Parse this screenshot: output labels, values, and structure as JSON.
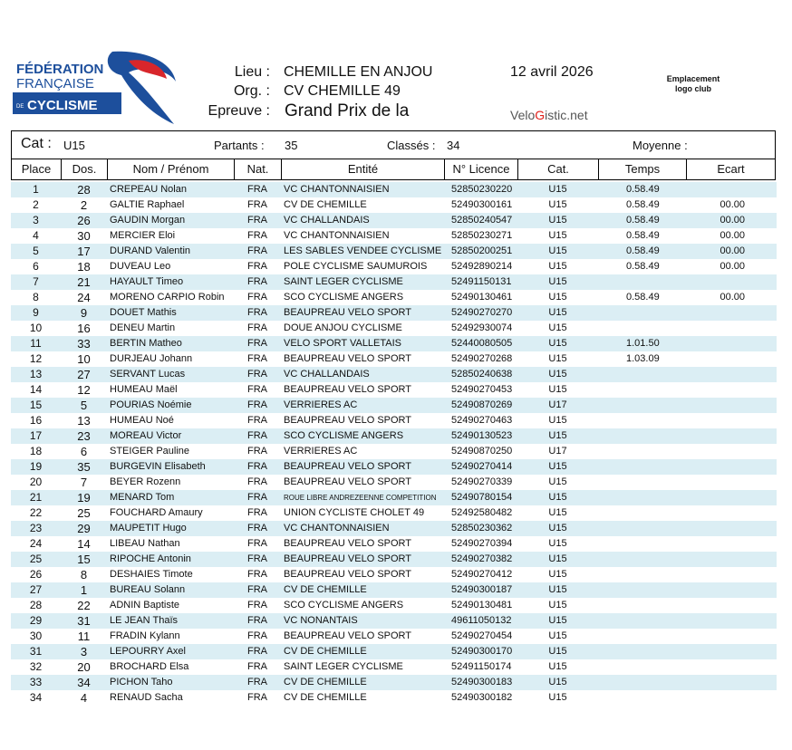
{
  "header": {
    "logo_text": [
      "FÉDÉRATION",
      "FRANÇAISE",
      "DE",
      "CYCLISME"
    ],
    "lieu_label": "Lieu :",
    "lieu": "CHEMILLE EN  ANJOU",
    "org_label": "Org. :",
    "org": "CV CHEMILLE 49",
    "epreuve_label": "Epreuve :",
    "epreuve": "Grand Prix de la",
    "date": "12 avril 2026",
    "club_logo_placeholder": [
      "Emplacement",
      "logo club"
    ],
    "velogistic": [
      "Velo",
      "G",
      "istic.net"
    ]
  },
  "summary": {
    "cat_label": "Cat :",
    "cat": "U15",
    "partants_label": "Partants :",
    "partants": "35",
    "classes_label": "Classés :",
    "classes": "34",
    "moyenne_label": "Moyenne :",
    "moyenne": ""
  },
  "columns": [
    "Place",
    "Dos.",
    "Nom  /  Prénom",
    "Nat.",
    "Entité",
    "N° Licence",
    "Cat.",
    "Temps",
    "Ecart"
  ],
  "rows": [
    [
      "1",
      "28",
      "CREPEAU  Nolan",
      "FRA",
      "VC CHANTONNAISIEN",
      "52850230220",
      "U15",
      "0.58.49",
      ""
    ],
    [
      "2",
      "2",
      "GALTIE  Raphael",
      "FRA",
      "CV DE CHEMILLE",
      "52490300161",
      "U15",
      "0.58.49",
      "00.00"
    ],
    [
      "3",
      "26",
      "GAUDIN  Morgan",
      "FRA",
      "VC CHALLANDAIS",
      "52850240547",
      "U15",
      "0.58.49",
      "00.00"
    ],
    [
      "4",
      "30",
      "MERCIER  Eloi",
      "FRA",
      "VC CHANTONNAISIEN",
      "52850230271",
      "U15",
      "0.58.49",
      "00.00"
    ],
    [
      "5",
      "17",
      "DURAND  Valentin",
      "FRA",
      "LES SABLES VENDEE CYCLISME",
      "52850200251",
      "U15",
      "0.58.49",
      "00.00"
    ],
    [
      "6",
      "18",
      "DUVEAU  Leo",
      "FRA",
      "POLE CYCLISME SAUMUROIS",
      "52492890214",
      "U15",
      "0.58.49",
      "00.00"
    ],
    [
      "7",
      "21",
      "HAYAULT  Timeo",
      "FRA",
      "SAINT LEGER CYCLISME",
      "52491150131",
      "U15",
      "",
      ""
    ],
    [
      "8",
      "24",
      "MORENO CARPIO  Robin",
      "FRA",
      "SCO CYCLISME ANGERS",
      "52490130461",
      "U15",
      "0.58.49",
      "00.00"
    ],
    [
      "9",
      "9",
      "DOUET  Mathis",
      "FRA",
      "BEAUPREAU VELO SPORT",
      "52490270270",
      "U15",
      "",
      ""
    ],
    [
      "10",
      "16",
      "DENEU  Martin",
      "FRA",
      "DOUE ANJOU CYCLISME",
      "52492930074",
      "U15",
      "",
      ""
    ],
    [
      "11",
      "33",
      "BERTIN  Matheo",
      "FRA",
      "VELO SPORT VALLETAIS",
      "52440080505",
      "U15",
      "1.01.50",
      ""
    ],
    [
      "12",
      "10",
      "DURJEAU  Johann",
      "FRA",
      "BEAUPREAU VELO SPORT",
      "52490270268",
      "U15",
      "1.03.09",
      ""
    ],
    [
      "13",
      "27",
      "SERVANT  Lucas",
      "FRA",
      "VC CHALLANDAIS",
      "52850240638",
      "U15",
      "",
      ""
    ],
    [
      "14",
      "12",
      "HUMEAU  Maël",
      "FRA",
      "BEAUPREAU VELO SPORT",
      "52490270453",
      "U15",
      "",
      ""
    ],
    [
      "15",
      "5",
      "POURIAS  Noémie",
      "FRA",
      "VERRIERES AC",
      "52490870269",
      "U17",
      "",
      ""
    ],
    [
      "16",
      "13",
      "HUMEAU  Noé",
      "FRA",
      "BEAUPREAU VELO SPORT",
      "52490270463",
      "U15",
      "",
      ""
    ],
    [
      "17",
      "23",
      "MOREAU  Victor",
      "FRA",
      "SCO CYCLISME ANGERS",
      "52490130523",
      "U15",
      "",
      ""
    ],
    [
      "18",
      "6",
      "STEIGER  Pauline",
      "FRA",
      "VERRIERES AC",
      "52490870250",
      "U17",
      "",
      ""
    ],
    [
      "19",
      "35",
      "BURGEVIN  Elisabeth",
      "FRA",
      "BEAUPREAU VELO SPORT",
      "52490270414",
      "U15",
      "",
      ""
    ],
    [
      "20",
      "7",
      "BEYER  Rozenn",
      "FRA",
      "BEAUPREAU VELO SPORT",
      "52490270339",
      "U15",
      "",
      ""
    ],
    [
      "21",
      "19",
      "MENARD  Tom",
      "FRA",
      "ROUE LIBRE ANDREZEENNE COMPETITION",
      "52490780154",
      "U15",
      "",
      ""
    ],
    [
      "22",
      "25",
      "FOUCHARD  Amaury",
      "FRA",
      "UNION CYCLISTE CHOLET 49",
      "52492580482",
      "U15",
      "",
      ""
    ],
    [
      "23",
      "29",
      "MAUPETIT  Hugo",
      "FRA",
      "VC CHANTONNAISIEN",
      "52850230362",
      "U15",
      "",
      ""
    ],
    [
      "24",
      "14",
      "LIBEAU  Nathan",
      "FRA",
      "BEAUPREAU VELO SPORT",
      "52490270394",
      "U15",
      "",
      ""
    ],
    [
      "25",
      "15",
      "RIPOCHE  Antonin",
      "FRA",
      "BEAUPREAU VELO SPORT",
      "52490270382",
      "U15",
      "",
      ""
    ],
    [
      "26",
      "8",
      "DESHAIES  Timote",
      "FRA",
      "BEAUPREAU VELO SPORT",
      "52490270412",
      "U15",
      "",
      ""
    ],
    [
      "27",
      "1",
      "BUREAU  Solann",
      "FRA",
      "CV DE CHEMILLE",
      "52490300187",
      "U15",
      "",
      ""
    ],
    [
      "28",
      "22",
      "ADNIN  Baptiste",
      "FRA",
      "SCO CYCLISME ANGERS",
      "52490130481",
      "U15",
      "",
      ""
    ],
    [
      "29",
      "31",
      "LE JEAN  Thaïs",
      "FRA",
      "VC NONANTAIS",
      "49611050132",
      "U15",
      "",
      ""
    ],
    [
      "30",
      "11",
      "FRADIN  Kylann",
      "FRA",
      "BEAUPREAU VELO SPORT",
      "52490270454",
      "U15",
      "",
      ""
    ],
    [
      "31",
      "3",
      "LEPOURRY  Axel",
      "FRA",
      "CV DE CHEMILLE",
      "52490300170",
      "U15",
      "",
      ""
    ],
    [
      "32",
      "20",
      "BROCHARD  Elsa",
      "FRA",
      "SAINT LEGER CYCLISME",
      "52491150174",
      "U15",
      "",
      ""
    ],
    [
      "33",
      "34",
      "PICHON  Taho",
      "FRA",
      "CV DE CHEMILLE",
      "52490300183",
      "U15",
      "",
      ""
    ],
    [
      "34",
      "4",
      "RENAUD  Sacha",
      "FRA",
      "CV DE CHEMILLE",
      "52490300182",
      "U15",
      "",
      ""
    ]
  ],
  "colors": {
    "stripe": "#dbeef4",
    "logo_blue": "#1d4f9c",
    "logo_red": "#d8262b",
    "velogistic_red": "#e0201b"
  }
}
